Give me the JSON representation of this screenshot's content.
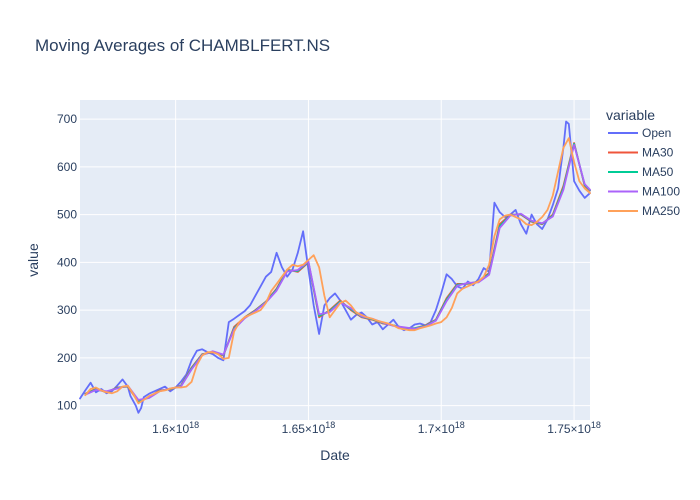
{
  "chart_data": {
    "type": "line",
    "title": "Moving Averages of CHAMBLFERT.NS",
    "xlabel": "Date",
    "ylabel": "value",
    "legend_title": "variable",
    "legend_position": "top-right",
    "grid": true,
    "x_ticks": [
      {
        "value": 1.6,
        "label": "1.6×10",
        "sup": "18"
      },
      {
        "value": 1.65,
        "label": "1.65×10",
        "sup": "18"
      },
      {
        "value": 1.7,
        "label": "1.7×10",
        "sup": "18"
      },
      {
        "value": 1.75,
        "label": "1.75×10",
        "sup": "18"
      }
    ],
    "y_ticks": [
      100,
      200,
      300,
      400,
      500,
      600,
      700
    ],
    "xlim": [
      1.564,
      1.756
    ],
    "ylim": [
      70,
      740
    ],
    "series": [
      {
        "name": "Open",
        "color": "#636efa",
        "x": [
          1.564,
          1.566,
          1.568,
          1.57,
          1.572,
          1.574,
          1.576,
          1.578,
          1.58,
          1.582,
          1.583,
          1.585,
          1.586,
          1.587,
          1.588,
          1.59,
          1.592,
          1.594,
          1.596,
          1.598,
          1.6,
          1.602,
          1.604,
          1.606,
          1.608,
          1.61,
          1.612,
          1.614,
          1.616,
          1.618,
          1.62,
          1.622,
          1.624,
          1.626,
          1.628,
          1.63,
          1.632,
          1.634,
          1.636,
          1.638,
          1.64,
          1.642,
          1.644,
          1.646,
          1.648,
          1.65,
          1.652,
          1.654,
          1.656,
          1.658,
          1.66,
          1.662,
          1.664,
          1.666,
          1.668,
          1.67,
          1.672,
          1.674,
          1.676,
          1.678,
          1.68,
          1.682,
          1.684,
          1.686,
          1.688,
          1.69,
          1.692,
          1.694,
          1.696,
          1.698,
          1.7,
          1.702,
          1.704,
          1.706,
          1.708,
          1.71,
          1.712,
          1.714,
          1.716,
          1.718,
          1.72,
          1.722,
          1.724,
          1.726,
          1.728,
          1.73,
          1.732,
          1.734,
          1.736,
          1.738,
          1.74,
          1.742,
          1.744,
          1.745,
          1.746,
          1.747,
          1.748,
          1.75,
          1.752,
          1.754,
          1.756
        ],
        "y": [
          115,
          132,
          148,
          128,
          135,
          126,
          130,
          142,
          155,
          140,
          120,
          100,
          85,
          95,
          118,
          125,
          130,
          135,
          140,
          130,
          138,
          150,
          165,
          195,
          215,
          218,
          212,
          208,
          200,
          195,
          275,
          282,
          290,
          298,
          310,
          330,
          350,
          370,
          380,
          420,
          390,
          370,
          385,
          420,
          465,
          385,
          310,
          250,
          310,
          325,
          335,
          320,
          300,
          280,
          290,
          295,
          285,
          270,
          275,
          260,
          270,
          280,
          265,
          258,
          262,
          270,
          272,
          268,
          275,
          300,
          335,
          375,
          365,
          350,
          345,
          360,
          352,
          365,
          388,
          380,
          525,
          505,
          495,
          500,
          510,
          480,
          460,
          500,
          480,
          470,
          490,
          520,
          555,
          600,
          640,
          695,
          690,
          570,
          550,
          535,
          545
        ]
      },
      {
        "name": "MA30",
        "color": "#ef553b",
        "x": [
          1.566,
          1.57,
          1.574,
          1.578,
          1.582,
          1.586,
          1.59,
          1.594,
          1.598,
          1.602,
          1.606,
          1.61,
          1.614,
          1.618,
          1.622,
          1.626,
          1.63,
          1.634,
          1.638,
          1.642,
          1.646,
          1.65,
          1.654,
          1.658,
          1.662,
          1.666,
          1.67,
          1.674,
          1.678,
          1.682,
          1.686,
          1.69,
          1.694,
          1.698,
          1.702,
          1.706,
          1.71,
          1.714,
          1.718,
          1.722,
          1.726,
          1.73,
          1.734,
          1.738,
          1.742,
          1.746,
          1.75,
          1.754,
          1.756
        ],
        "y": [
          125,
          135,
          128,
          138,
          140,
          108,
          118,
          132,
          134,
          142,
          180,
          208,
          212,
          205,
          265,
          285,
          300,
          318,
          345,
          385,
          380,
          400,
          285,
          300,
          320,
          300,
          285,
          280,
          272,
          268,
          262,
          262,
          268,
          280,
          325,
          355,
          355,
          360,
          378,
          480,
          500,
          500,
          485,
          480,
          500,
          560,
          650,
          560,
          550
        ]
      },
      {
        "name": "MA50",
        "color": "#00cc96",
        "x": [
          1.566,
          1.57,
          1.574,
          1.578,
          1.582,
          1.586,
          1.59,
          1.594,
          1.598,
          1.602,
          1.606,
          1.61,
          1.614,
          1.618,
          1.622,
          1.626,
          1.63,
          1.634,
          1.638,
          1.642,
          1.646,
          1.65,
          1.654,
          1.658,
          1.662,
          1.666,
          1.67,
          1.674,
          1.678,
          1.682,
          1.686,
          1.69,
          1.694,
          1.698,
          1.702,
          1.706,
          1.71,
          1.714,
          1.718,
          1.722,
          1.726,
          1.73,
          1.734,
          1.738,
          1.742,
          1.746,
          1.75,
          1.754,
          1.756
        ],
        "y": [
          124,
          134,
          129,
          137,
          141,
          110,
          117,
          131,
          135,
          141,
          178,
          207,
          213,
          206,
          262,
          284,
          299,
          317,
          343,
          383,
          382,
          401,
          288,
          298,
          318,
          302,
          286,
          281,
          273,
          268,
          263,
          262,
          267,
          279,
          322,
          353,
          356,
          359,
          376,
          476,
          499,
          501,
          486,
          481,
          498,
          556,
          648,
          562,
          551
        ]
      },
      {
        "name": "MA100",
        "color": "#ab63fa",
        "x": [
          1.566,
          1.57,
          1.574,
          1.578,
          1.582,
          1.586,
          1.59,
          1.594,
          1.598,
          1.602,
          1.606,
          1.61,
          1.614,
          1.618,
          1.622,
          1.626,
          1.63,
          1.634,
          1.638,
          1.642,
          1.646,
          1.65,
          1.654,
          1.658,
          1.662,
          1.666,
          1.67,
          1.674,
          1.678,
          1.682,
          1.686,
          1.69,
          1.694,
          1.698,
          1.702,
          1.706,
          1.71,
          1.714,
          1.718,
          1.722,
          1.726,
          1.73,
          1.734,
          1.738,
          1.742,
          1.746,
          1.75,
          1.754,
          1.756
        ],
        "y": [
          123,
          133,
          130,
          136,
          142,
          112,
          116,
          130,
          136,
          140,
          176,
          206,
          214,
          207,
          260,
          283,
          298,
          316,
          341,
          381,
          384,
          402,
          291,
          296,
          316,
          304,
          287,
          282,
          274,
          267,
          264,
          261,
          266,
          278,
          319,
          351,
          357,
          358,
          374,
          472,
          498,
          502,
          487,
          482,
          496,
          552,
          646,
          564,
          552
        ]
      },
      {
        "name": "MA250",
        "color": "#ffa15a",
        "x": [
          1.566,
          1.568,
          1.57,
          1.572,
          1.574,
          1.576,
          1.578,
          1.58,
          1.582,
          1.584,
          1.586,
          1.588,
          1.59,
          1.592,
          1.594,
          1.596,
          1.598,
          1.6,
          1.602,
          1.604,
          1.606,
          1.608,
          1.61,
          1.612,
          1.614,
          1.616,
          1.618,
          1.62,
          1.622,
          1.624,
          1.626,
          1.628,
          1.63,
          1.632,
          1.634,
          1.636,
          1.638,
          1.64,
          1.642,
          1.644,
          1.646,
          1.648,
          1.65,
          1.652,
          1.654,
          1.656,
          1.658,
          1.66,
          1.662,
          1.664,
          1.666,
          1.668,
          1.67,
          1.672,
          1.674,
          1.676,
          1.678,
          1.68,
          1.682,
          1.684,
          1.686,
          1.688,
          1.69,
          1.692,
          1.694,
          1.696,
          1.698,
          1.7,
          1.702,
          1.704,
          1.706,
          1.708,
          1.71,
          1.712,
          1.714,
          1.716,
          1.718,
          1.72,
          1.722,
          1.724,
          1.726,
          1.728,
          1.73,
          1.732,
          1.734,
          1.736,
          1.738,
          1.74,
          1.742,
          1.744,
          1.746,
          1.748,
          1.75,
          1.752,
          1.754,
          1.756
        ],
        "y": [
          122,
          135,
          138,
          132,
          128,
          126,
          130,
          140,
          142,
          125,
          105,
          112,
          120,
          125,
          130,
          132,
          136,
          138,
          138,
          140,
          150,
          185,
          205,
          212,
          212,
          208,
          198,
          200,
          255,
          275,
          285,
          290,
          295,
          300,
          315,
          340,
          355,
          370,
          385,
          395,
          392,
          395,
          405,
          415,
          390,
          330,
          285,
          300,
          315,
          320,
          310,
          295,
          290,
          285,
          282,
          278,
          275,
          272,
          268,
          262,
          260,
          258,
          258,
          262,
          265,
          268,
          272,
          275,
          285,
          305,
          335,
          345,
          350,
          355,
          360,
          370,
          395,
          455,
          490,
          498,
          500,
          495,
          490,
          480,
          478,
          485,
          495,
          510,
          540,
          590,
          640,
          660,
          610,
          570,
          555,
          545
        ]
      }
    ]
  }
}
